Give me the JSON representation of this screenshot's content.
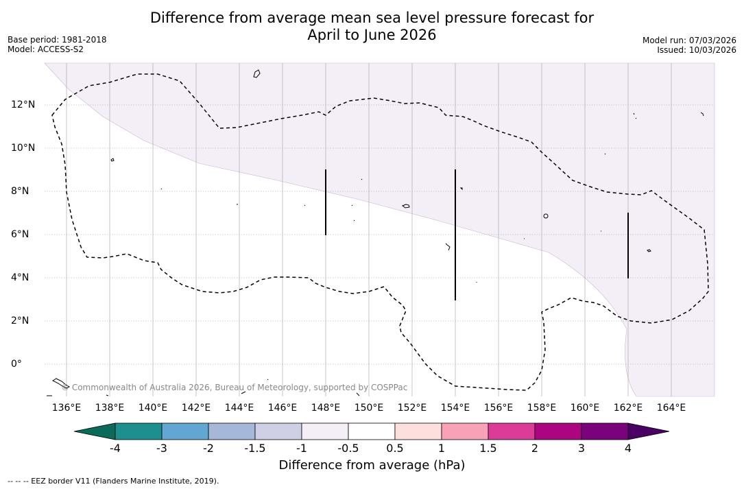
{
  "title_line1": "Difference from average mean sea level pressure forecast for",
  "title_line2": "April to June 2026",
  "base_period": "Base period: 1981-2018",
  "model": "Model: ACCESS-S2",
  "model_run": "Model run: 07/03/2026",
  "issued": "Issued: 10/03/2026",
  "credit": "© Commonwealth of Australia 2026, Bureau of Meteorology, supported by COSPPac",
  "x_ticks": [
    "136°E",
    "138°E",
    "140°E",
    "142°E",
    "144°E",
    "146°E",
    "148°E",
    "150°E",
    "152°E",
    "154°E",
    "156°E",
    "158°E",
    "160°E",
    "162°E",
    "164°E"
  ],
  "y_ticks": [
    "12°N",
    "10°N",
    "8°N",
    "6°N",
    "4°N",
    "2°N",
    "0°"
  ],
  "colorbar": {
    "label": "Difference from average (hPa)",
    "ticks": [
      "-4",
      "-3",
      "-2",
      "-1.5",
      "-1",
      "-0.5",
      "0.5",
      "1",
      "1.5",
      "2",
      "3",
      "4"
    ],
    "colors": [
      "#1d8f8f",
      "#62a7d3",
      "#a6b8da",
      "#cfcfe6",
      "#f4eef7",
      "#ffffff",
      "#fde0dd",
      "#f9a2b7",
      "#dc3c98",
      "#ad0581",
      "#7a027b"
    ],
    "under_color": "#0a6b5b",
    "over_color": "#4b0064"
  },
  "field_color": "#f4eef7",
  "footnote": "--  --  -- EEZ border V11 (Flanders Marine Institute, 2019)."
}
